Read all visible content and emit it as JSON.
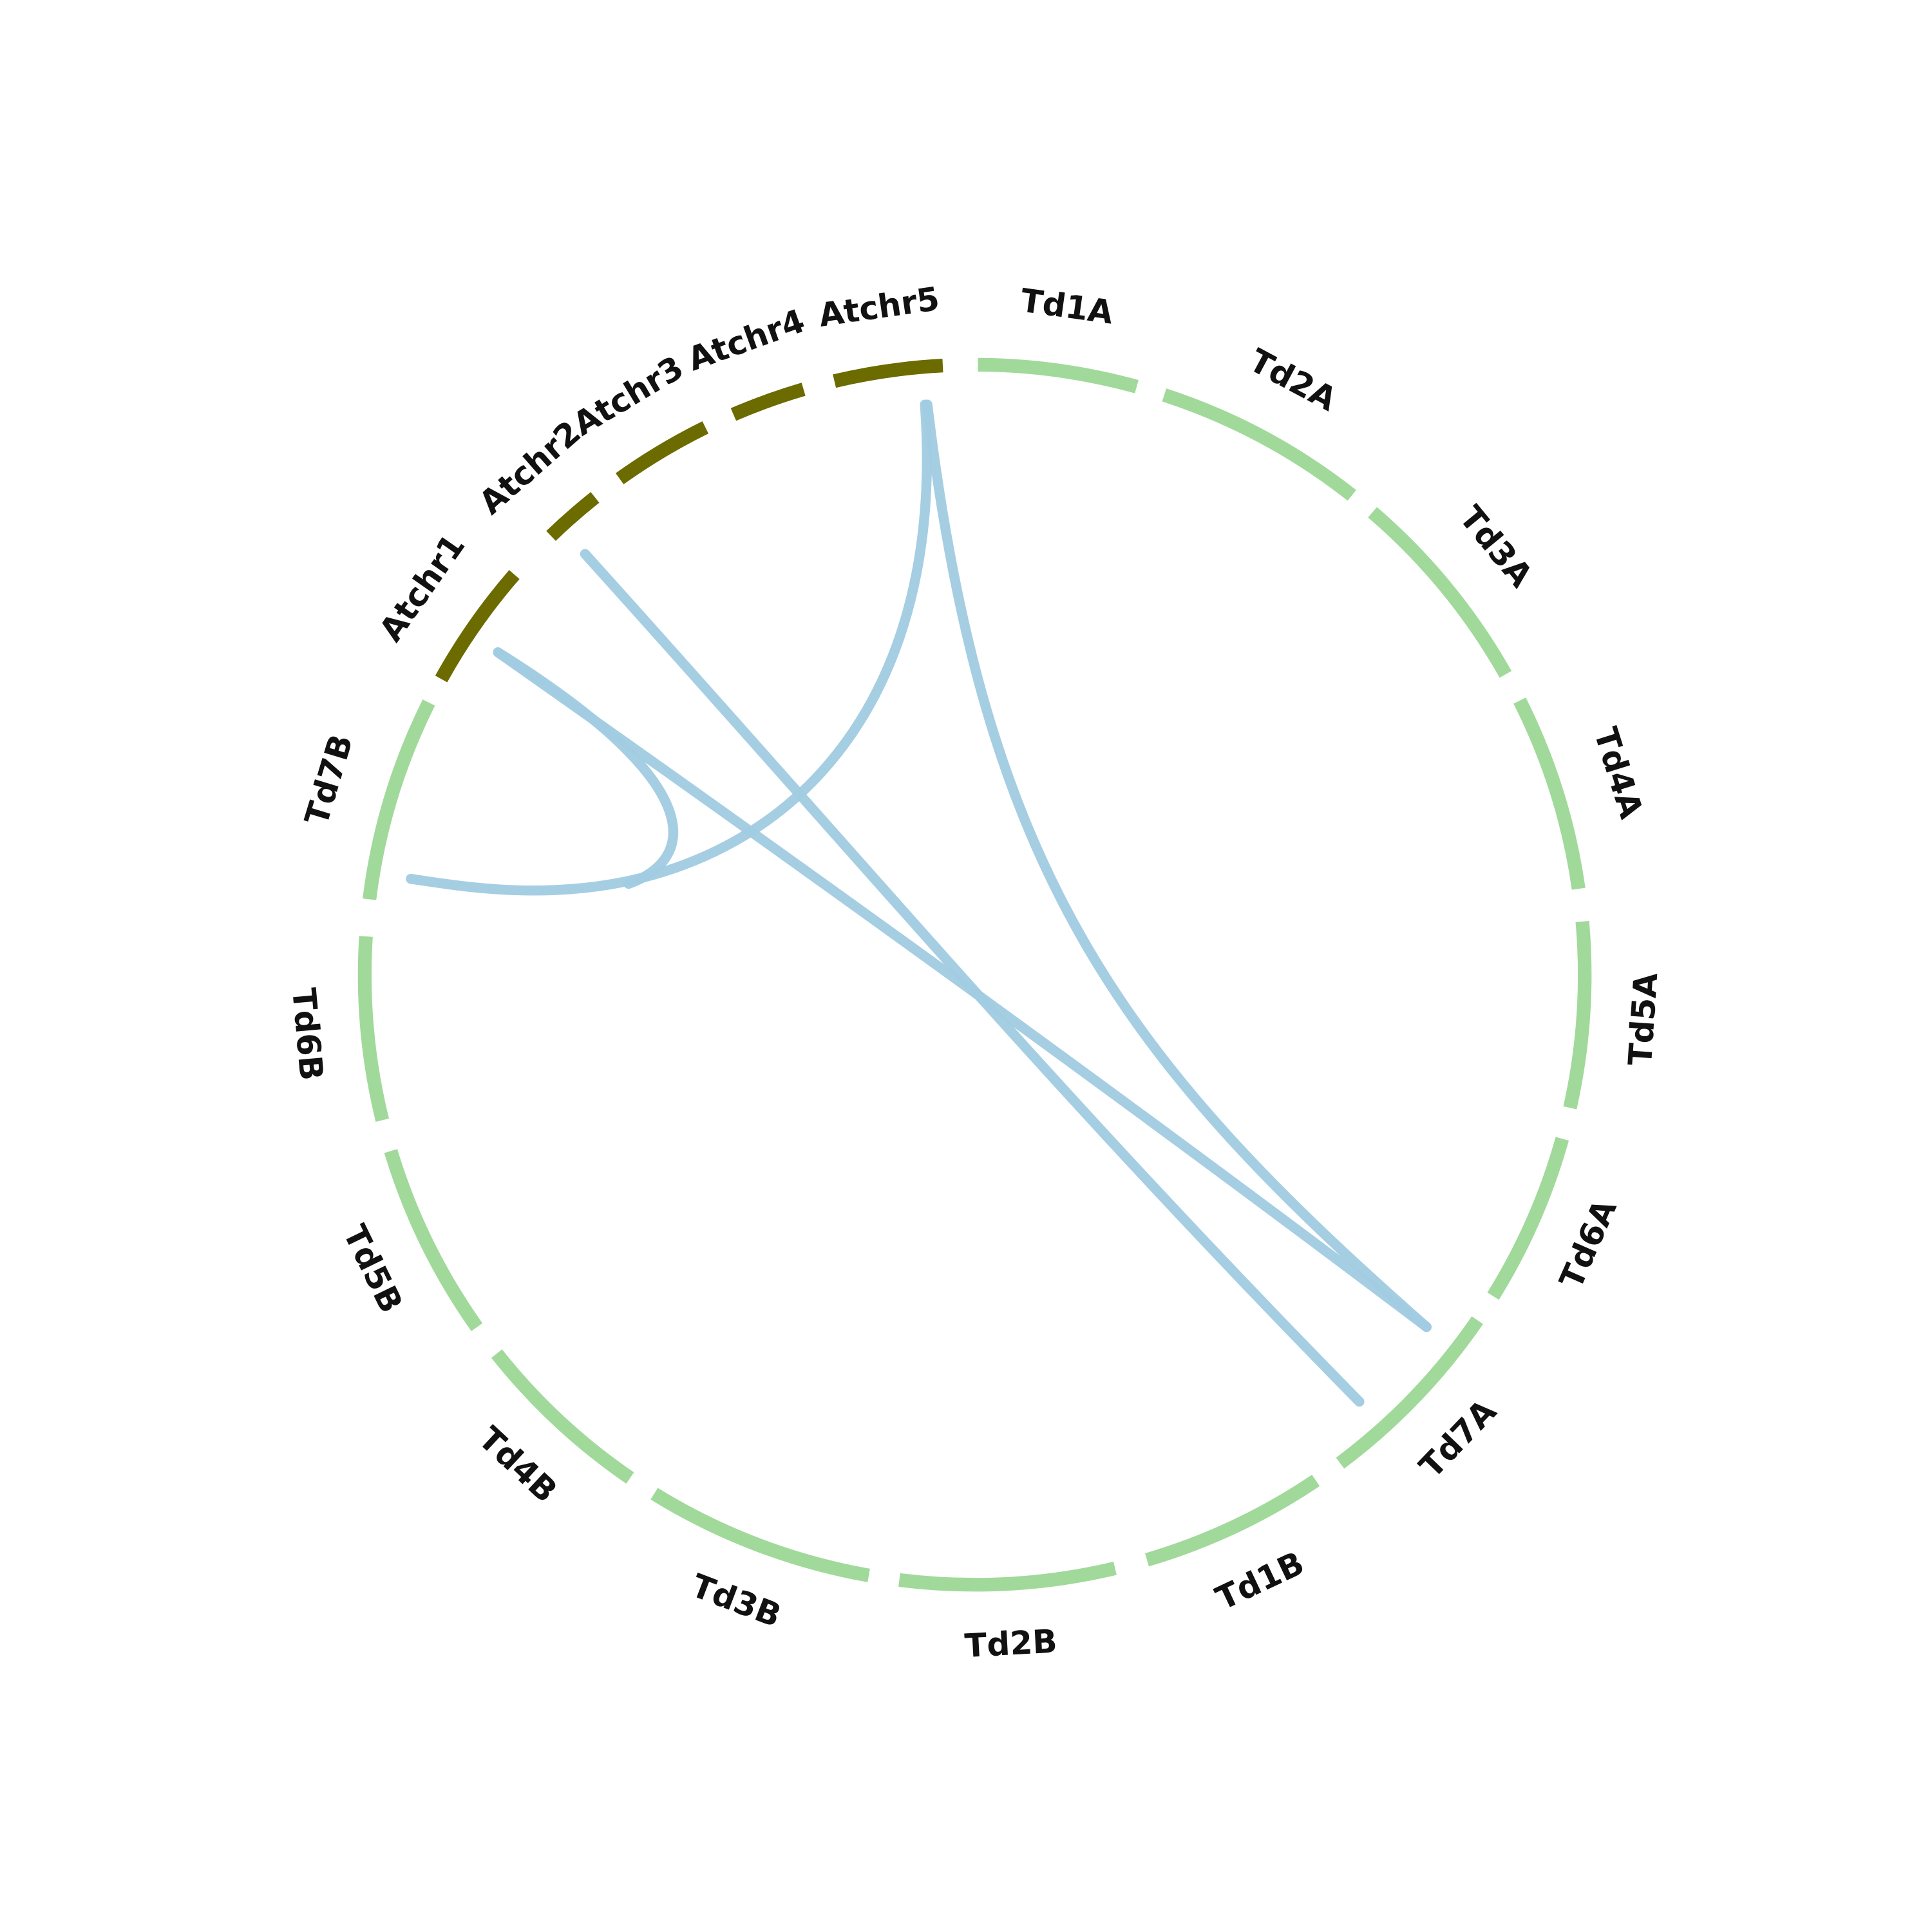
{
  "nodes": [
    {
      "label": "Td1A",
      "color": "#a1d99b"
    },
    {
      "label": "Td2A",
      "color": "#a1d99b"
    },
    {
      "label": "Td3A",
      "color": "#a1d99b"
    },
    {
      "label": "Td4A",
      "color": "#a1d99b"
    },
    {
      "label": "Td5A",
      "color": "#a1d99b"
    },
    {
      "label": "Td6A",
      "color": "#a1d99b"
    },
    {
      "label": "Td7A",
      "color": "#a1d99b"
    },
    {
      "label": "Td1B",
      "color": "#a1d99b"
    },
    {
      "label": "Td2B",
      "color": "#a1d99b"
    },
    {
      "label": "Td3B",
      "color": "#a1d99b"
    },
    {
      "label": "Td4B",
      "color": "#a1d99b"
    },
    {
      "label": "Td5B",
      "color": "#a1d99b"
    },
    {
      "label": "Td6B",
      "color": "#a1d99b"
    },
    {
      "label": "Td7B",
      "color": "#a1d99b"
    },
    {
      "label": "Atchr1",
      "color": "#6b6b00"
    },
    {
      "label": "Atchr2",
      "color": "#6b6b00"
    },
    {
      "label": "Atchr3",
      "color": "#6b6b00"
    },
    {
      "label": "Atchr4",
      "color": "#6b6b00"
    },
    {
      "label": "Atchr5",
      "color": "#6b6b00"
    }
  ],
  "link_color": "#a0cbe2"
}
